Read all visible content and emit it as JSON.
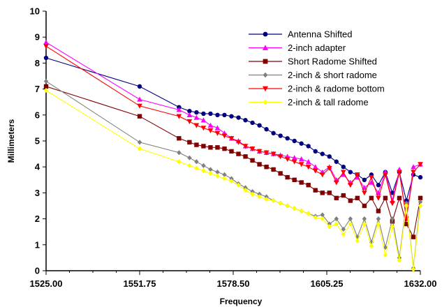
{
  "chart_data": {
    "type": "line",
    "title": "",
    "xlabel": "Frequency",
    "ylabel": "Millimeters",
    "xlim": [
      1525,
      1632
    ],
    "ylim": [
      0,
      10
    ],
    "x_ticks": [
      "1525.00",
      "1551.75",
      "1578.50",
      "1605.25",
      "1632.00"
    ],
    "y_ticks": [
      "0",
      "1",
      "2",
      "3",
      "4",
      "5",
      "6",
      "7",
      "8",
      "9",
      "10"
    ],
    "grid": false,
    "legend_position": "top-right",
    "series": [
      {
        "name": "Antenna Shifted",
        "color": "#000080",
        "marker": "circle",
        "x": [
          1525,
          1551.75,
          1563,
          1566,
          1568,
          1570,
          1572,
          1574,
          1576,
          1578,
          1580,
          1582,
          1584,
          1586,
          1588,
          1590,
          1592,
          1594,
          1596,
          1598,
          1600,
          1602,
          1604,
          1606,
          1608,
          1610,
          1612,
          1614,
          1616,
          1618,
          1620,
          1622,
          1624,
          1626,
          1628,
          1630,
          1632
        ],
        "y": [
          8.2,
          7.1,
          6.3,
          6.15,
          6.1,
          6.05,
          6.05,
          6.0,
          6.0,
          5.95,
          5.9,
          5.8,
          5.7,
          5.6,
          5.45,
          5.3,
          5.2,
          5.1,
          5.0,
          4.9,
          4.8,
          4.6,
          4.5,
          4.4,
          4.2,
          4.0,
          3.8,
          3.7,
          3.5,
          3.7,
          3.3,
          3.8,
          3.0,
          3.8,
          2.7,
          3.7,
          3.6
        ]
      },
      {
        "name": "2-inch adapter",
        "color": "#ff00ff",
        "marker": "triangle-up",
        "x": [
          1525,
          1551.75,
          1563,
          1566,
          1568,
          1570,
          1572,
          1574,
          1576,
          1578,
          1580,
          1582,
          1584,
          1586,
          1588,
          1590,
          1592,
          1594,
          1596,
          1598,
          1600,
          1602,
          1604,
          1606,
          1608,
          1610,
          1612,
          1614,
          1616,
          1618,
          1620,
          1622,
          1624,
          1626,
          1628,
          1630,
          1632
        ],
        "y": [
          8.8,
          6.6,
          6.2,
          6.0,
          5.9,
          5.8,
          5.6,
          5.5,
          5.3,
          5.1,
          5.0,
          4.8,
          4.7,
          4.6,
          4.55,
          4.5,
          4.45,
          4.4,
          4.35,
          4.3,
          4.2,
          4.0,
          3.8,
          4.0,
          3.5,
          3.7,
          3.4,
          3.6,
          3.2,
          3.4,
          3.0,
          3.8,
          2.7,
          3.9,
          2.0,
          4.0,
          4.1
        ]
      },
      {
        "name": "Short Radome Shifted",
        "color": "#800000",
        "marker": "square",
        "x": [
          1525,
          1551.75,
          1563,
          1566,
          1568,
          1570,
          1572,
          1574,
          1576,
          1578,
          1580,
          1582,
          1584,
          1586,
          1588,
          1590,
          1592,
          1594,
          1596,
          1598,
          1600,
          1602,
          1604,
          1606,
          1608,
          1610,
          1612,
          1614,
          1616,
          1618,
          1620,
          1622,
          1624,
          1626,
          1628,
          1630,
          1632
        ],
        "y": [
          7.1,
          5.95,
          5.1,
          4.95,
          4.85,
          4.8,
          4.75,
          4.75,
          4.7,
          4.6,
          4.5,
          4.4,
          4.25,
          4.1,
          4.0,
          3.9,
          3.75,
          3.6,
          3.5,
          3.4,
          3.3,
          3.1,
          3.0,
          3.0,
          2.8,
          2.9,
          2.7,
          2.8,
          2.5,
          2.8,
          2.3,
          2.8,
          1.9,
          2.8,
          1.8,
          1.3,
          2.8
        ]
      },
      {
        "name": "2-inch & short radome",
        "color": "#808080",
        "marker": "diamond",
        "x": [
          1525,
          1551.75,
          1563,
          1566,
          1568,
          1570,
          1572,
          1574,
          1576,
          1578,
          1580,
          1582,
          1584,
          1586,
          1588,
          1590,
          1592,
          1594,
          1596,
          1598,
          1600,
          1602,
          1604,
          1606,
          1608,
          1610,
          1612,
          1614,
          1616,
          1618,
          1620,
          1622,
          1624,
          1626,
          1628,
          1630,
          1632
        ],
        "y": [
          7.3,
          4.95,
          4.55,
          4.35,
          4.2,
          4.05,
          3.9,
          3.8,
          3.7,
          3.55,
          3.35,
          3.2,
          3.05,
          2.95,
          2.85,
          2.7,
          2.6,
          2.5,
          2.4,
          2.3,
          2.2,
          2.1,
          2.15,
          1.8,
          2.0,
          1.6,
          2.0,
          1.3,
          2.0,
          1.1,
          2.0,
          0.9,
          2.0,
          0.5,
          2.6,
          0.1,
          2.65
        ]
      },
      {
        "name": "2-inch & radome bottom",
        "color": "#ff0000",
        "marker": "triangle-down",
        "x": [
          1525,
          1551.75,
          1563,
          1566,
          1568,
          1570,
          1572,
          1574,
          1576,
          1578,
          1580,
          1582,
          1584,
          1586,
          1588,
          1590,
          1592,
          1594,
          1596,
          1598,
          1600,
          1602,
          1604,
          1606,
          1608,
          1610,
          1612,
          1614,
          1616,
          1618,
          1620,
          1622,
          1624,
          1626,
          1628,
          1630,
          1632
        ],
        "y": [
          8.65,
          6.35,
          5.95,
          5.75,
          5.6,
          5.5,
          5.4,
          5.3,
          5.2,
          5.1,
          4.95,
          4.8,
          4.7,
          4.6,
          4.55,
          4.5,
          4.4,
          4.3,
          4.2,
          4.1,
          4.0,
          3.85,
          3.7,
          3.95,
          3.4,
          3.8,
          3.3,
          3.7,
          3.0,
          3.6,
          2.8,
          3.7,
          2.6,
          3.8,
          2.0,
          3.8,
          4.1
        ]
      },
      {
        "name": "2-inch & tall radome",
        "color": "#ffff00",
        "marker": "diamond",
        "x": [
          1525,
          1551.75,
          1563,
          1566,
          1568,
          1570,
          1572,
          1574,
          1576,
          1578,
          1580,
          1582,
          1584,
          1586,
          1588,
          1590,
          1592,
          1594,
          1596,
          1598,
          1600,
          1602,
          1604,
          1606,
          1608,
          1610,
          1612,
          1614,
          1616,
          1618,
          1620,
          1622,
          1624,
          1626,
          1628,
          1630,
          1632
        ],
        "y": [
          6.95,
          4.7,
          4.2,
          4.05,
          3.95,
          3.85,
          3.75,
          3.65,
          3.55,
          3.45,
          3.3,
          3.1,
          2.95,
          2.85,
          2.75,
          2.7,
          2.6,
          2.5,
          2.4,
          2.3,
          2.2,
          2.05,
          2.0,
          1.7,
          1.8,
          1.4,
          1.8,
          1.15,
          1.8,
          0.95,
          1.8,
          0.6,
          1.7,
          0.4,
          2.5,
          0.05,
          2.5
        ]
      }
    ]
  }
}
